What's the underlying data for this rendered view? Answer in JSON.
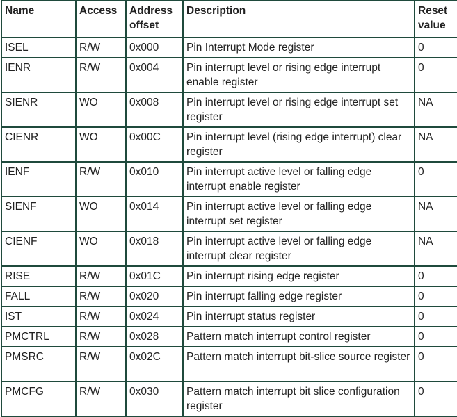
{
  "table": {
    "headers": [
      "Name",
      "Access",
      "Address offset",
      "Description",
      "Reset value"
    ],
    "rows": [
      [
        "ISEL",
        "R/W",
        "0x000",
        "Pin Interrupt Mode register",
        "0"
      ],
      [
        "IENR",
        "R/W",
        "0x004",
        "Pin interrupt level or rising edge  interrupt enable register",
        "0"
      ],
      [
        "SIENR",
        "WO",
        "0x008",
        "Pin interrupt level or rising edge  interrupt set register",
        "NA"
      ],
      [
        "CIENR",
        "WO",
        "0x00C",
        "Pin interrupt level (rising edge interrupt) clear register",
        "NA"
      ],
      [
        "IENF",
        "R/W",
        "0x010",
        "Pin interrupt active level or falling edge interrupt enable register",
        "0"
      ],
      [
        "SIENF",
        "WO",
        "0x014",
        "Pin interrupt active level or falling edge interrupt set register",
        "NA"
      ],
      [
        "CIENF",
        "WO",
        "0x018",
        "Pin interrupt active level or falling edge interrupt clear register",
        "NA"
      ],
      [
        "RISE",
        "R/W",
        "0x01C",
        "Pin interrupt rising edge register",
        "0"
      ],
      [
        "FALL",
        "R/W",
        "0x020",
        "Pin interrupt falling edge register",
        "0"
      ],
      [
        "IST",
        "R/W",
        "0x024",
        "Pin interrupt status register",
        "0"
      ],
      [
        "PMCTRL",
        "R/W",
        "0x028",
        "Pattern match interrupt control register",
        "0"
      ],
      [
        "PMSRC",
        "R/W",
        "0x02C",
        "Pattern match interrupt bit-slice source register",
        "0"
      ],
      [
        "PMCFG",
        "R/W",
        "0x030",
        "Pattern match interrupt bit slice configuration register",
        "0"
      ]
    ]
  },
  "colors": {
    "border": "#1f4a3c"
  }
}
